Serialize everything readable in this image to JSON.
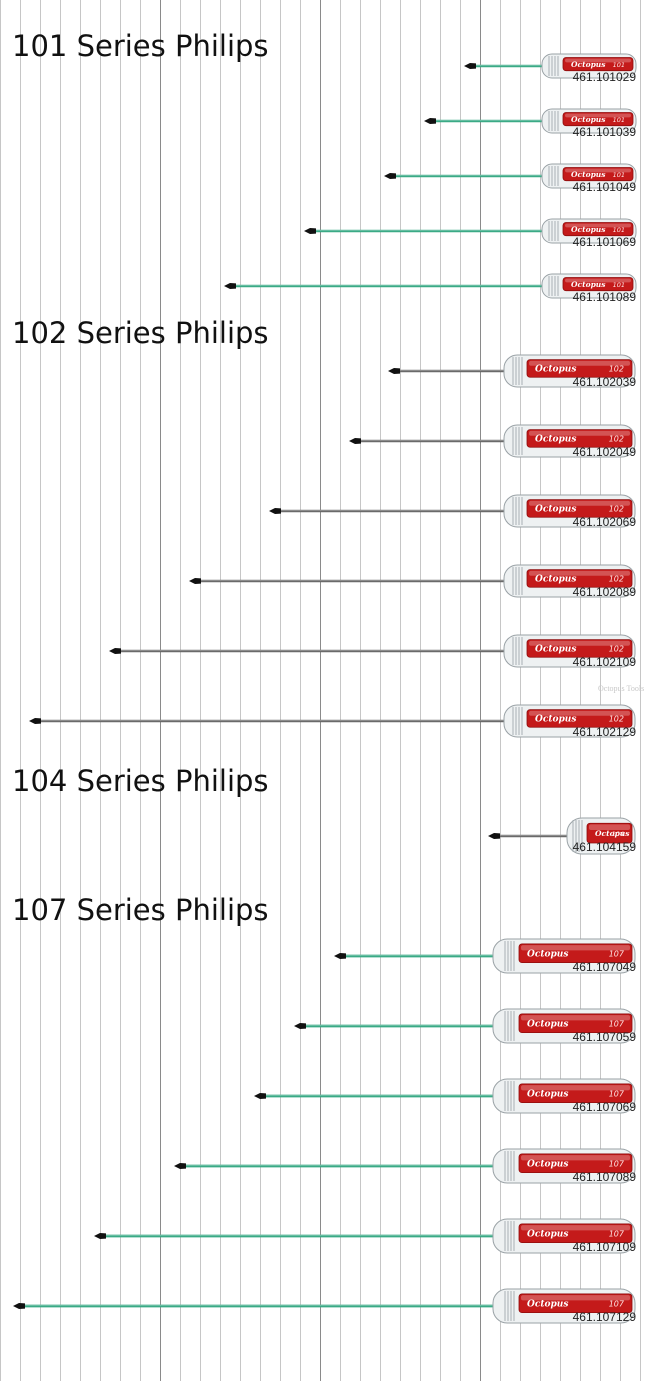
{
  "brand": "Octopus",
  "watermark": "Octopus Tools",
  "colors": {
    "handle_red": "#c41a1a",
    "handle_red_dark": "#8e0c0c",
    "shaft_green": "#3aaa86",
    "shaft_gray": "#6a6a6a",
    "tip_black": "#111111",
    "grid_line": "#c6c6c6",
    "grid_line_major": "#8a8a8a"
  },
  "sections": [
    {
      "title": "101 Series Philips",
      "model": "101",
      "items": [
        {
          "sku": "461.101029",
          "tip_x_ruler": 464
        },
        {
          "sku": "461.101039",
          "tip_x_ruler": 424
        },
        {
          "sku": "461.101049",
          "tip_x_ruler": 384
        },
        {
          "sku": "461.101069",
          "tip_x_ruler": 304
        },
        {
          "sku": "461.101089",
          "tip_x_ruler": 224
        }
      ]
    },
    {
      "title": "102 Series Philips",
      "model": "102",
      "items": [
        {
          "sku": "461.102039",
          "tip_x_ruler": 388
        },
        {
          "sku": "461.102049",
          "tip_x_ruler": 349
        },
        {
          "sku": "461.102069",
          "tip_x_ruler": 269
        },
        {
          "sku": "461.102089",
          "tip_x_ruler": 189
        },
        {
          "sku": "461.102109",
          "tip_x_ruler": 109
        },
        {
          "sku": "461.102129",
          "tip_x_ruler": 29
        }
      ]
    },
    {
      "title": "104 Series Philips",
      "model": "104",
      "items": [
        {
          "sku": "461.104159",
          "tip_x_ruler": 488
        }
      ]
    },
    {
      "title": "107 Series Philips",
      "model": "107",
      "items": [
        {
          "sku": "461.107049",
          "tip_x_ruler": 334
        },
        {
          "sku": "461.107059",
          "tip_x_ruler": 294
        },
        {
          "sku": "461.107069",
          "tip_x_ruler": 254
        },
        {
          "sku": "461.107089",
          "tip_x_ruler": 174
        },
        {
          "sku": "461.107109",
          "tip_x_ruler": 94
        },
        {
          "sku": "461.107129",
          "tip_x_ruler": 13
        }
      ]
    }
  ]
}
